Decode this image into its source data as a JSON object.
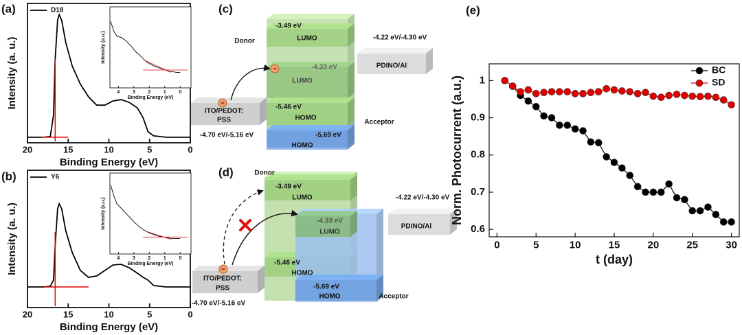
{
  "panels": [
    "(a)",
    "(b)",
    "(c)",
    "(d)",
    "(e)"
  ],
  "chart_data": [
    {
      "type": "line",
      "xlabel": "Binding Energy (eV)",
      "ylabel": "Intensity (a. u.)",
      "xlim": [
        20,
        0
      ],
      "ylim": [
        0,
        1
      ],
      "xticks": [
        20,
        15,
        10,
        5,
        0
      ],
      "legend": "upper left",
      "series": [
        {
          "name": "D18",
          "color": "#000000",
          "x": [
            20,
            18,
            17.2,
            16.8,
            16.6,
            16.3,
            16.1,
            15.8,
            15.3,
            14.5,
            13.5,
            12.5,
            11.5,
            10.5,
            9.5,
            8.5,
            7.5,
            6.5,
            5.8,
            5.2,
            4.5,
            3,
            0
          ],
          "values": [
            0.04,
            0.04,
            0.045,
            0.2,
            0.6,
            0.88,
            0.92,
            0.88,
            0.72,
            0.55,
            0.42,
            0.33,
            0.27,
            0.27,
            0.3,
            0.31,
            0.29,
            0.25,
            0.18,
            0.08,
            0.05,
            0.04,
            0.04
          ]
        }
      ],
      "fit_lines": [
        {
          "color": "#e00000",
          "x": [
            16.6,
            16.6
          ],
          "values": [
            0.6,
            0.01
          ]
        },
        {
          "color": "#e00000",
          "x": [
            18.3,
            15
          ],
          "values": [
            0.04,
            0.04
          ]
        }
      ]
    },
    {
      "type": "line",
      "xlabel": "Binding Energy (eV)",
      "ylabel": "Intensity (a.u.)",
      "xlim": [
        4.55,
        -0.7
      ],
      "ylim": [
        0,
        1
      ],
      "xticks": [
        4,
        3,
        2,
        1,
        0
      ],
      "series": [
        {
          "color": "#000000",
          "x": [
            4.5,
            4.3,
            4.1,
            3.8,
            3.5,
            3.2,
            2.9,
            2.6,
            2.3,
            2.0,
            1.7,
            1.4,
            1.1,
            0.8,
            0.5,
            0.2,
            0
          ],
          "values": [
            0.82,
            0.7,
            0.64,
            0.62,
            0.58,
            0.52,
            0.45,
            0.4,
            0.34,
            0.3,
            0.27,
            0.25,
            0.23,
            0.21,
            0.2,
            0.19,
            0.19
          ]
        }
      ],
      "fit_lines": [
        {
          "color": "#e00000",
          "x": [
            2.3,
            0.6
          ],
          "values": [
            0.34,
            0.19
          ]
        },
        {
          "color": "#e00000",
          "x": [
            2.4,
            -0.5
          ],
          "values": [
            0.22,
            0.22
          ]
        }
      ]
    },
    {
      "type": "line",
      "xlabel": "Binding Energy (eV)",
      "ylabel": "Intensity (a. u.)",
      "xlim": [
        20,
        0
      ],
      "ylim": [
        0,
        1
      ],
      "xticks": [
        20,
        15,
        10,
        5,
        0
      ],
      "legend": "upper left",
      "series": [
        {
          "name": "Y6",
          "color": "#000000",
          "x": [
            20,
            18,
            17.2,
            16.8,
            16.6,
            16.3,
            16.1,
            15.8,
            15.3,
            14.5,
            13.5,
            12.5,
            11.5,
            10.5,
            9.5,
            8.5,
            7.5,
            6.5,
            5.8,
            5.2,
            4.5,
            3,
            0
          ],
          "values": [
            0.15,
            0.15,
            0.155,
            0.2,
            0.45,
            0.72,
            0.755,
            0.72,
            0.56,
            0.4,
            0.27,
            0.22,
            0.23,
            0.27,
            0.31,
            0.315,
            0.29,
            0.25,
            0.22,
            0.2,
            0.16,
            0.15,
            0.15
          ]
        }
      ],
      "fit_lines": [
        {
          "color": "#e00000",
          "x": [
            16.6,
            16.6
          ],
          "values": [
            0.55,
            0.01
          ]
        },
        {
          "color": "#e00000",
          "x": [
            18,
            12.5
          ],
          "values": [
            0.15,
            0.15
          ]
        }
      ]
    },
    {
      "type": "line",
      "xlabel": "Binding Energy (eV)",
      "ylabel": "Intensity (a.u.)",
      "xlim": [
        4.55,
        -0.7
      ],
      "ylim": [
        0,
        1
      ],
      "xticks": [
        4,
        3,
        2,
        1,
        0
      ],
      "series": [
        {
          "color": "#000000",
          "x": [
            4.5,
            4.3,
            4.1,
            3.8,
            3.5,
            3.2,
            2.9,
            2.6,
            2.3,
            2.0,
            1.7,
            1.4,
            1.1,
            0.8,
            0.5,
            0.2,
            0
          ],
          "values": [
            0.85,
            0.72,
            0.62,
            0.56,
            0.5,
            0.44,
            0.38,
            0.33,
            0.29,
            0.26,
            0.24,
            0.22,
            0.21,
            0.2,
            0.19,
            0.19,
            0.19
          ]
        }
      ],
      "fit_lines": [
        {
          "color": "#e00000",
          "x": [
            2.2,
            0.6
          ],
          "values": [
            0.28,
            0.18
          ]
        },
        {
          "color": "#e00000",
          "x": [
            2.4,
            -0.5
          ],
          "values": [
            0.21,
            0.21
          ]
        }
      ]
    },
    {
      "type": "line",
      "xlabel": "t (day)",
      "ylabel": "Norm. Photocurrent (a.u.)",
      "xlim": [
        -1,
        31
      ],
      "ylim": [
        0.58,
        1.045
      ],
      "xticks": [
        0,
        5,
        10,
        15,
        20,
        25,
        30
      ],
      "yticks": [
        0.6,
        0.7,
        0.8,
        0.9,
        1
      ],
      "legend": "upper right",
      "markers": true,
      "x": [
        1,
        2,
        3,
        4,
        5,
        6,
        7,
        8,
        9,
        10,
        11,
        12,
        13,
        14,
        15,
        16,
        17,
        18,
        19,
        20,
        21,
        22,
        23,
        24,
        25,
        26,
        27,
        28,
        29,
        30
      ],
      "series": [
        {
          "name": "BC",
          "color": "#000000",
          "values": [
            1.0,
            0.985,
            0.96,
            0.945,
            0.93,
            0.905,
            0.9,
            0.88,
            0.88,
            0.87,
            0.865,
            0.835,
            0.833,
            0.795,
            0.78,
            0.765,
            0.745,
            0.715,
            0.7,
            0.7,
            0.7,
            0.722,
            0.685,
            0.68,
            0.65,
            0.65,
            0.66,
            0.64,
            0.62,
            0.62
          ]
        },
        {
          "name": "SD",
          "color": "#e00000",
          "values": [
            1.0,
            0.985,
            0.97,
            0.975,
            0.965,
            0.968,
            0.97,
            0.97,
            0.97,
            0.965,
            0.965,
            0.968,
            0.97,
            0.978,
            0.975,
            0.972,
            0.97,
            0.965,
            0.968,
            0.958,
            0.955,
            0.96,
            0.963,
            0.96,
            0.958,
            0.957,
            0.958,
            0.955,
            0.948,
            0.935
          ]
        }
      ]
    }
  ],
  "diagrams": [
    {
      "donor": "Donor",
      "acceptor": "Acceptor",
      "donor_lumo": {
        "energy": "-3.49 eV",
        "name": "LUMO"
      },
      "donor_homo": {
        "energy": "-5.46 eV",
        "name": "HOMO"
      },
      "acceptor_lumo": {
        "energy": "-4.33 eV",
        "name": "LUMO"
      },
      "acceptor_homo": {
        "energy": "-5.69 eV",
        "name": "HOMO"
      },
      "anode": {
        "lines": [
          "ITO/PEDOT:",
          "PSS"
        ],
        "energy": "-4.70 eV/-5.16 eV"
      },
      "cathode": {
        "name": "PDINO/Al",
        "energy": "-4.22 eV/-4.30 eV"
      }
    },
    {
      "donor": "Donor",
      "acceptor": "Acceptor",
      "donor_lumo": {
        "energy": "-3.49 eV",
        "name": "LUMO"
      },
      "donor_homo": {
        "energy": "-5.46 eV",
        "name": "HOMO"
      },
      "acceptor_lumo": {
        "energy": "-4.33 eV",
        "name": "LUMO"
      },
      "acceptor_homo": {
        "energy": "-5.69 eV",
        "name": "HOMO"
      },
      "anode": {
        "lines": [
          "ITO/PEDOT:",
          "PSS"
        ],
        "energy": "-4.70 eV/-5.16 eV"
      },
      "cathode": {
        "name": "PDINO/Al",
        "energy": "-4.22 eV/-4.30 eV"
      }
    }
  ]
}
